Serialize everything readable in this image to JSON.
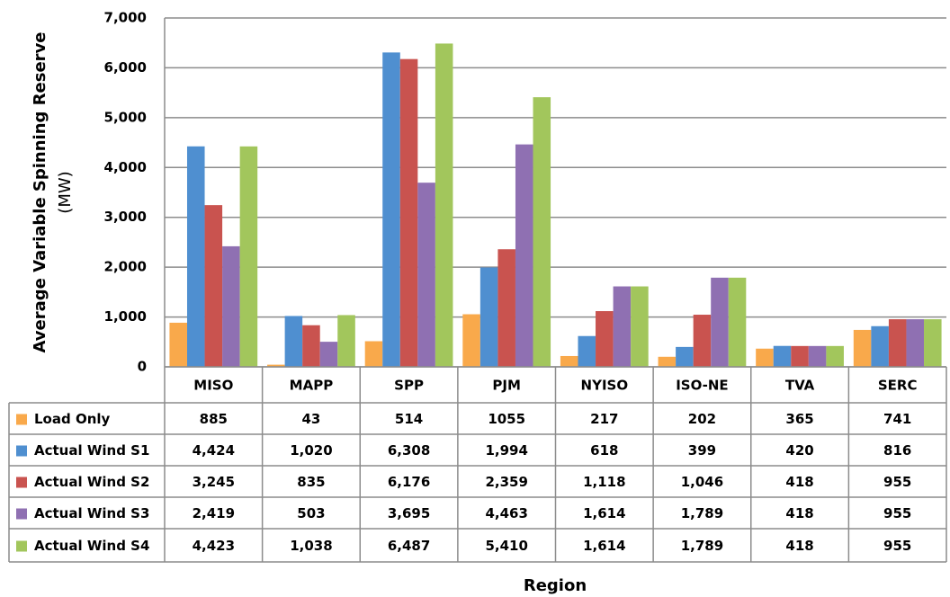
{
  "chart_data": {
    "type": "bar",
    "y_label": [
      "Average Variable Spinning Reserve",
      "(MW)"
    ],
    "x_label": "Region",
    "categories": [
      "MISO",
      "MAPP",
      "SPP",
      "PJM",
      "NYISO",
      "ISO-NE",
      "TVA",
      "SERC"
    ],
    "series": [
      {
        "name": "Load Only",
        "color": "#f9a94b",
        "values": [
          885,
          43,
          514,
          1055,
          217,
          202,
          365,
          741
        ]
      },
      {
        "name": "Actual Wind S1",
        "color": "#4f8fd0",
        "values": [
          4424,
          1020,
          6308,
          1994,
          618,
          399,
          420,
          816
        ],
        "value_labels": [
          "4,424",
          "1,020",
          "6,308",
          "1,994",
          "618",
          "399",
          "420",
          "816"
        ]
      },
      {
        "name": "Actual Wind S2",
        "color": "#c9534f",
        "values": [
          3245,
          835,
          6176,
          2359,
          1118,
          1046,
          418,
          955
        ],
        "value_labels": [
          "3,245",
          "835",
          "6,176",
          "2,359",
          "1,118",
          "1,046",
          "418",
          "955"
        ]
      },
      {
        "name": "Actual Wind S3",
        "color": "#8f70b2",
        "values": [
          2419,
          503,
          3695,
          4463,
          1614,
          1789,
          418,
          955
        ],
        "value_labels": [
          "2,419",
          "503",
          "3,695",
          "4,463",
          "1,614",
          "1,789",
          "418",
          "955"
        ]
      },
      {
        "name": "Actual Wind S4",
        "color": "#a2c65c",
        "values": [
          4423,
          1038,
          6487,
          5410,
          1614,
          1789,
          418,
          955
        ],
        "value_labels": [
          "4,423",
          "1,038",
          "6,487",
          "5,410",
          "1,614",
          "1,789",
          "418",
          "955"
        ]
      }
    ],
    "ylim": [
      0,
      7000
    ],
    "yticks": [
      0,
      {
        "value": 1000,
        "label": "1,000"
      },
      {
        "value": 2000,
        "label": "2,000"
      },
      {
        "value": 3000,
        "label": "3,000"
      },
      {
        "value": 4000,
        "label": "4,000"
      },
      {
        "value": 5000,
        "label": "5,000"
      },
      {
        "value": 6000,
        "label": "6,000"
      },
      {
        "value": 7000,
        "label": "7,000"
      }
    ],
    "grid": true
  }
}
